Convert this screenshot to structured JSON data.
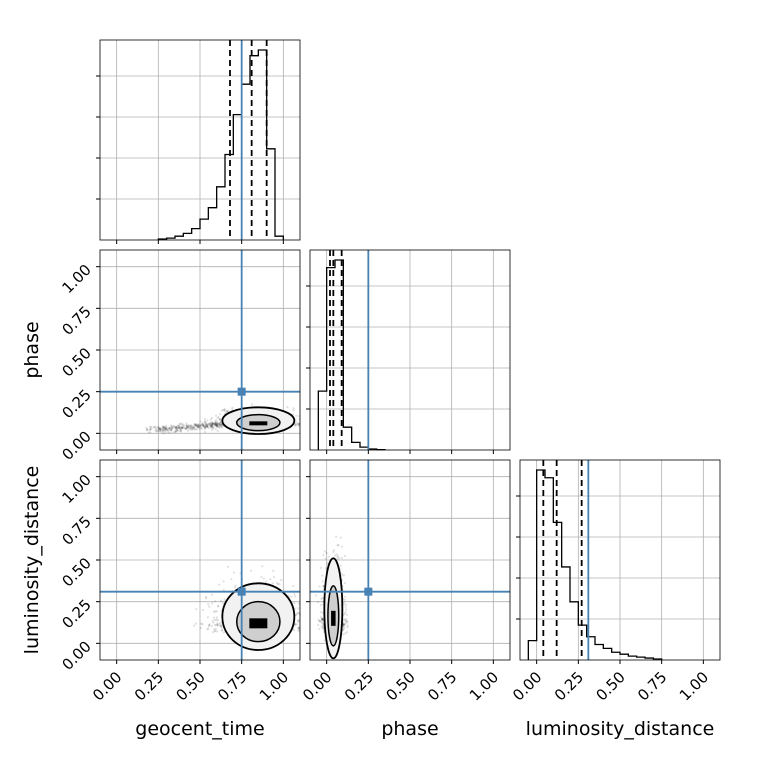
{
  "chart_data": {
    "type": "corner",
    "parameters": [
      "geocent_time",
      "phase",
      "luminosity_distance"
    ],
    "axis_range": [
      -0.1,
      1.1
    ],
    "tick_labels": [
      "0.00",
      "0.25",
      "0.50",
      "0.75",
      "1.00"
    ],
    "tick_values": [
      0,
      0.25,
      0.5,
      0.75,
      1.0
    ],
    "truths": {
      "geocent_time": 0.75,
      "phase": 0.25,
      "luminosity_distance": 0.31
    },
    "truth_color": "#4682b4",
    "histogram_color": "#000000",
    "grid": true,
    "histograms": [
      {
        "parameter": "geocent_time",
        "bin_edges": [
          0.25,
          0.3,
          0.35,
          0.4,
          0.45,
          0.5,
          0.55,
          0.6,
          0.65,
          0.7,
          0.75,
          0.8,
          0.85,
          0.9,
          0.95,
          1.0
        ],
        "counts": [
          0.005,
          0.01,
          0.02,
          0.035,
          0.06,
          0.11,
          0.17,
          0.28,
          0.45,
          0.66,
          0.82,
          0.97,
          1.0,
          0.48,
          0.02
        ],
        "quantiles": [
          0.68,
          0.81,
          0.9
        ]
      },
      {
        "parameter": "phase",
        "bin_edges": [
          -0.05,
          0.0,
          0.05,
          0.1,
          0.15,
          0.2,
          0.25,
          0.3,
          0.35
        ],
        "counts": [
          0.31,
          0.96,
          1.0,
          0.12,
          0.04,
          0.015,
          0.005,
          0.002
        ],
        "quantiles": [
          0.02,
          0.04,
          0.09
        ]
      },
      {
        "parameter": "luminosity_distance",
        "bin_edges": [
          -0.05,
          0.0,
          0.05,
          0.1,
          0.15,
          0.2,
          0.25,
          0.3,
          0.35,
          0.4,
          0.45,
          0.5,
          0.55,
          0.6,
          0.65,
          0.7,
          0.75
        ],
        "counts": [
          0.1,
          0.98,
          0.94,
          0.71,
          0.48,
          0.3,
          0.18,
          0.12,
          0.08,
          0.06,
          0.04,
          0.03,
          0.02,
          0.015,
          0.01,
          0.005
        ],
        "quantiles": [
          0.04,
          0.12,
          0.27
        ]
      }
    ],
    "scatter": [
      {
        "x": "geocent_time",
        "y": "phase",
        "center": [
          0.85,
          0.06
        ],
        "spread": [
          0.12,
          0.04
        ],
        "tail_to": [
          0.2,
          0.02
        ]
      },
      {
        "x": "geocent_time",
        "y": "luminosity_distance",
        "center": [
          0.85,
          0.12
        ],
        "spread": [
          0.12,
          0.1
        ]
      },
      {
        "x": "phase",
        "y": "luminosity_distance",
        "center": [
          0.04,
          0.15
        ],
        "spread": [
          0.03,
          0.15
        ]
      }
    ]
  }
}
